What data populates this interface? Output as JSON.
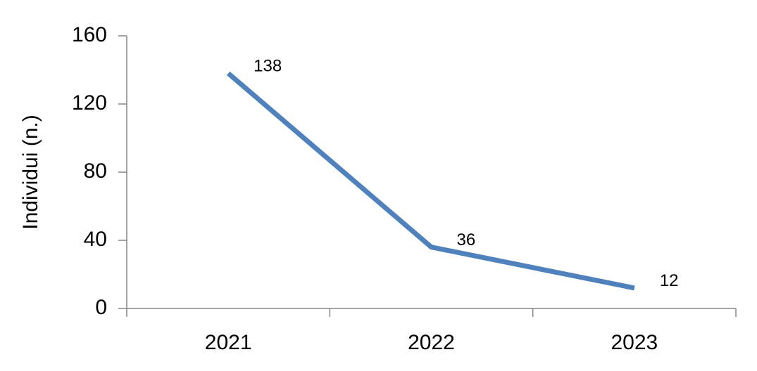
{
  "chart_data": {
    "type": "line",
    "y_label": "Individui (n.)",
    "categories": [
      "2021",
      "2022",
      "2023"
    ],
    "series": [
      {
        "name": "Individui",
        "color": "#4f81bd",
        "values": [
          138,
          36,
          12
        ]
      }
    ],
    "ylim": [
      0,
      160
    ],
    "yticks": [
      0,
      40,
      80,
      120,
      160
    ],
    "grid": false,
    "data_labels": true
  }
}
